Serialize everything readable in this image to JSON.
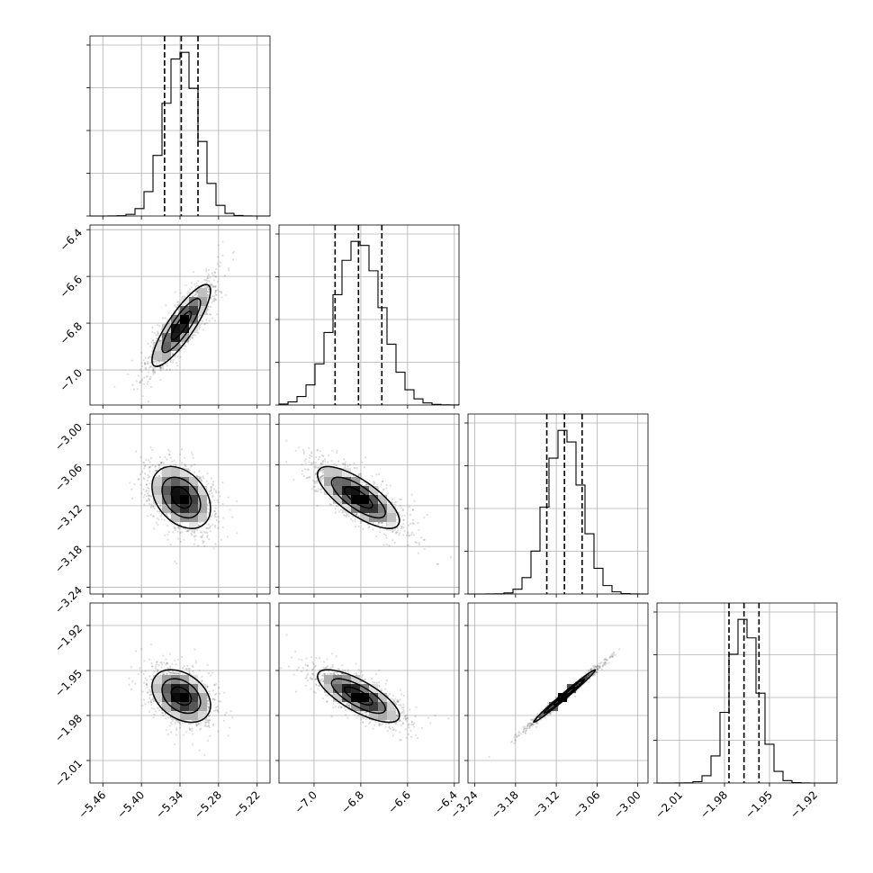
{
  "chart_data": {
    "type": "corner",
    "parameters": [
      {
        "index": 0,
        "range": [
          -5.48,
          -5.2
        ],
        "mean": -5.338,
        "sd": 0.026,
        "quantiles": [
          -5.364,
          -5.338,
          -5.312
        ],
        "ticks": [
          -5.46,
          -5.4,
          -5.34,
          -5.28,
          -5.22
        ],
        "tick_labels": [
          "−5.46",
          "−5.40",
          "−5.34",
          "−5.28",
          "−5.22"
        ]
      },
      {
        "index": 1,
        "range": [
          -7.15,
          -6.38
        ],
        "mean": -6.81,
        "sd": 0.1,
        "quantiles": [
          -6.91,
          -6.81,
          -6.71
        ],
        "ticks": [
          -7.0,
          -6.8,
          -6.6,
          -6.4
        ],
        "tick_labels": [
          "−7.0",
          "−6.8",
          "−6.6",
          "−6.4"
        ]
      },
      {
        "index": 2,
        "range": [
          -3.25,
          -2.985
        ],
        "mean": -3.108,
        "sd": 0.026,
        "quantiles": [
          -3.134,
          -3.108,
          -3.082
        ],
        "ticks": [
          -3.24,
          -3.18,
          -3.12,
          -3.06,
          -3.0
        ],
        "tick_labels": [
          "−3.24",
          "−3.18",
          "−3.12",
          "−3.06",
          "−3.00"
        ]
      },
      {
        "index": 3,
        "range": [
          -2.025,
          -1.905
        ],
        "mean": -1.967,
        "sd": 0.01,
        "quantiles": [
          -1.977,
          -1.967,
          -1.957
        ],
        "ticks": [
          -2.01,
          -1.98,
          -1.95,
          -1.92
        ],
        "tick_labels": [
          "−2.01",
          "−1.98",
          "−1.95",
          "−1.92"
        ]
      }
    ],
    "correlations": [
      {
        "i": 0,
        "j": 1,
        "rho": 0.85
      },
      {
        "i": 0,
        "j": 2,
        "rho": -0.35
      },
      {
        "i": 1,
        "j": 2,
        "rho": -0.75
      },
      {
        "i": 0,
        "j": 3,
        "rho": -0.35
      },
      {
        "i": 1,
        "j": 3,
        "rho": -0.75
      },
      {
        "i": 2,
        "j": 3,
        "rho": 0.99
      }
    ],
    "histogram_bins": 20,
    "grid": true,
    "quantile_lines": "dashed",
    "contour_levels": 3
  }
}
